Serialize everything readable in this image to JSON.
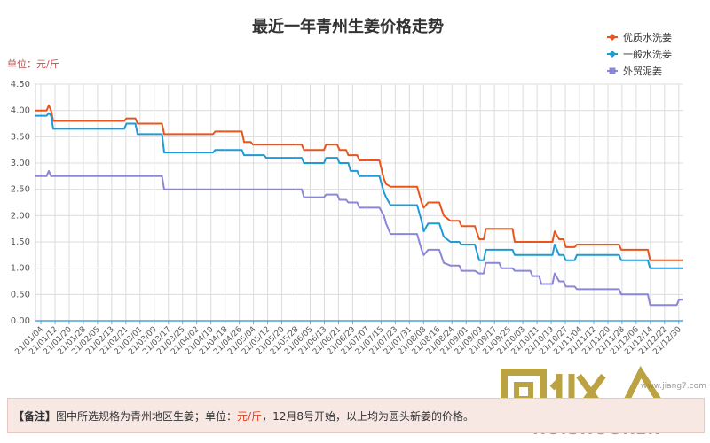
{
  "chart_data": {
    "type": "line",
    "title": "最近一年青州生姜价格走势",
    "unit_label": "单位：元/斤",
    "ylim": [
      0,
      4.5
    ],
    "y_ticks": [
      "0.00",
      "0.50",
      "1.00",
      "1.50",
      "2.00",
      "2.50",
      "3.00",
      "3.50",
      "4.00",
      "4.50"
    ],
    "x_labels": [
      "21/01/04",
      "21/01/12",
      "21/01/20",
      "21/01/28",
      "21/02/05",
      "21/02/13",
      "21/02/21",
      "21/03/01",
      "21/03/09",
      "21/03/17",
      "21/03/25",
      "21/04/02",
      "21/04/10",
      "21/04/18",
      "21/04/26",
      "21/05/04",
      "21/05/12",
      "21/05/20",
      "21/05/28",
      "21/06/05",
      "21/06/13",
      "21/06/21",
      "21/06/29",
      "21/07/07",
      "21/07/15",
      "21/07/23",
      "21/07/31",
      "21/08/08",
      "21/08/16",
      "21/08/24",
      "21/09/01",
      "21/09/09",
      "21/09/17",
      "21/09/25",
      "21/10/03",
      "21/10/11",
      "21/10/19",
      "21/10/27",
      "21/11/04",
      "21/11/12",
      "21/11/20",
      "21/11/28",
      "21/12/06",
      "21/12/14",
      "21/12/22",
      "21/12/30"
    ],
    "grid": true,
    "legend_position": "top-right",
    "series": [
      {
        "name": "优质水洗姜",
        "color": "#e8561e",
        "points": [
          [
            0,
            4.0
          ],
          [
            5,
            4.0
          ],
          [
            6,
            4.1
          ],
          [
            7,
            4.0
          ],
          [
            8,
            3.8
          ],
          [
            40,
            3.8
          ],
          [
            41,
            3.85
          ],
          [
            45,
            3.85
          ],
          [
            46,
            3.75
          ],
          [
            57,
            3.75
          ],
          [
            58,
            3.55
          ],
          [
            80,
            3.55
          ],
          [
            81,
            3.6
          ],
          [
            93,
            3.6
          ],
          [
            94,
            3.4
          ],
          [
            97,
            3.4
          ],
          [
            98,
            3.35
          ],
          [
            120,
            3.35
          ],
          [
            121,
            3.25
          ],
          [
            130,
            3.25
          ],
          [
            131,
            3.35
          ],
          [
            136,
            3.35
          ],
          [
            137,
            3.25
          ],
          [
            140,
            3.25
          ],
          [
            141,
            3.15
          ],
          [
            145,
            3.15
          ],
          [
            146,
            3.05
          ],
          [
            155,
            3.05
          ],
          [
            157,
            2.7
          ],
          [
            158,
            2.6
          ],
          [
            160,
            2.55
          ],
          [
            172,
            2.55
          ],
          [
            174,
            2.25
          ],
          [
            175,
            2.15
          ],
          [
            177,
            2.25
          ],
          [
            182,
            2.25
          ],
          [
            184,
            2.0
          ],
          [
            187,
            1.9
          ],
          [
            191,
            1.9
          ],
          [
            192,
            1.8
          ],
          [
            198,
            1.8
          ],
          [
            200,
            1.55
          ],
          [
            202,
            1.55
          ],
          [
            203,
            1.75
          ],
          [
            215,
            1.75
          ],
          [
            216,
            1.5
          ],
          [
            233,
            1.5
          ],
          [
            234,
            1.7
          ],
          [
            236,
            1.55
          ],
          [
            238,
            1.55
          ],
          [
            239,
            1.4
          ],
          [
            243,
            1.4
          ],
          [
            244,
            1.45
          ],
          [
            263,
            1.45
          ],
          [
            264,
            1.35
          ],
          [
            276,
            1.35
          ],
          [
            277,
            1.15
          ],
          [
            292,
            1.15
          ]
        ]
      },
      {
        "name": "一般水洗姜",
        "color": "#1e9ad6",
        "points": [
          [
            0,
            3.9
          ],
          [
            5,
            3.9
          ],
          [
            6,
            3.95
          ],
          [
            7,
            3.9
          ],
          [
            8,
            3.65
          ],
          [
            40,
            3.65
          ],
          [
            41,
            3.75
          ],
          [
            45,
            3.75
          ],
          [
            46,
            3.55
          ],
          [
            57,
            3.55
          ],
          [
            58,
            3.2
          ],
          [
            80,
            3.2
          ],
          [
            81,
            3.25
          ],
          [
            93,
            3.25
          ],
          [
            94,
            3.15
          ],
          [
            103,
            3.15
          ],
          [
            104,
            3.1
          ],
          [
            120,
            3.1
          ],
          [
            121,
            3.0
          ],
          [
            130,
            3.0
          ],
          [
            131,
            3.1
          ],
          [
            136,
            3.1
          ],
          [
            137,
            3.0
          ],
          [
            141,
            3.0
          ],
          [
            142,
            2.85
          ],
          [
            145,
            2.85
          ],
          [
            146,
            2.75
          ],
          [
            155,
            2.75
          ],
          [
            157,
            2.45
          ],
          [
            158,
            2.35
          ],
          [
            160,
            2.2
          ],
          [
            172,
            2.2
          ],
          [
            174,
            1.9
          ],
          [
            175,
            1.7
          ],
          [
            177,
            1.85
          ],
          [
            182,
            1.85
          ],
          [
            184,
            1.6
          ],
          [
            187,
            1.5
          ],
          [
            191,
            1.5
          ],
          [
            192,
            1.45
          ],
          [
            198,
            1.45
          ],
          [
            200,
            1.15
          ],
          [
            202,
            1.15
          ],
          [
            203,
            1.35
          ],
          [
            215,
            1.35
          ],
          [
            216,
            1.25
          ],
          [
            233,
            1.25
          ],
          [
            234,
            1.45
          ],
          [
            236,
            1.25
          ],
          [
            238,
            1.25
          ],
          [
            239,
            1.15
          ],
          [
            243,
            1.15
          ],
          [
            244,
            1.25
          ],
          [
            263,
            1.25
          ],
          [
            264,
            1.15
          ],
          [
            276,
            1.15
          ],
          [
            277,
            1.0
          ],
          [
            292,
            1.0
          ]
        ]
      },
      {
        "name": "外贸泥姜",
        "color": "#8c86d8",
        "points": [
          [
            0,
            2.75
          ],
          [
            5,
            2.75
          ],
          [
            6,
            2.85
          ],
          [
            7,
            2.75
          ],
          [
            57,
            2.75
          ],
          [
            58,
            2.5
          ],
          [
            120,
            2.5
          ],
          [
            121,
            2.35
          ],
          [
            130,
            2.35
          ],
          [
            131,
            2.4
          ],
          [
            136,
            2.4
          ],
          [
            137,
            2.3
          ],
          [
            140,
            2.3
          ],
          [
            141,
            2.25
          ],
          [
            145,
            2.25
          ],
          [
            146,
            2.15
          ],
          [
            155,
            2.15
          ],
          [
            157,
            2.0
          ],
          [
            158,
            1.85
          ],
          [
            160,
            1.65
          ],
          [
            172,
            1.65
          ],
          [
            174,
            1.35
          ],
          [
            175,
            1.25
          ],
          [
            177,
            1.35
          ],
          [
            182,
            1.35
          ],
          [
            184,
            1.1
          ],
          [
            187,
            1.05
          ],
          [
            191,
            1.05
          ],
          [
            192,
            0.95
          ],
          [
            198,
            0.95
          ],
          [
            200,
            0.9
          ],
          [
            202,
            0.9
          ],
          [
            203,
            1.1
          ],
          [
            209,
            1.1
          ],
          [
            210,
            1.0
          ],
          [
            215,
            1.0
          ],
          [
            216,
            0.95
          ],
          [
            223,
            0.95
          ],
          [
            224,
            0.85
          ],
          [
            227,
            0.85
          ],
          [
            228,
            0.7
          ],
          [
            233,
            0.7
          ],
          [
            234,
            0.9
          ],
          [
            236,
            0.75
          ],
          [
            238,
            0.75
          ],
          [
            239,
            0.65
          ],
          [
            243,
            0.65
          ],
          [
            244,
            0.6
          ],
          [
            263,
            0.6
          ],
          [
            264,
            0.5
          ],
          [
            276,
            0.5
          ],
          [
            277,
            0.3
          ],
          [
            289,
            0.3
          ],
          [
            290,
            0.4
          ],
          [
            292,
            0.4
          ]
        ]
      }
    ]
  },
  "note": {
    "label": "【备注】",
    "text1": "图中所选规格为青州地区生姜；单位：",
    "unit": "元/斤",
    "text2": "，12月8号开始，以上均为圆头新姜的价格。"
  },
  "watermark": {
    "site": "www.jiang7.com",
    "logo_text": "HUISHOUREN"
  }
}
